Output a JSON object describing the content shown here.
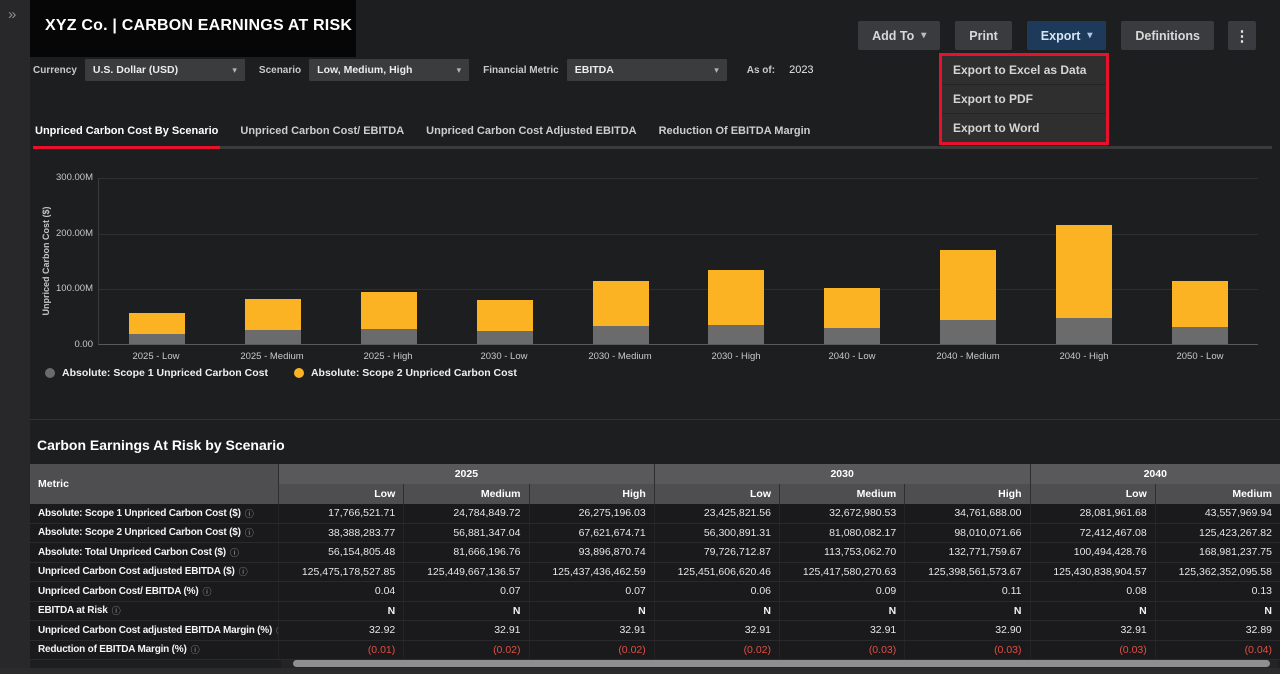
{
  "icons": {
    "expand": "»",
    "caret_down": "▾",
    "kebab": "⋮",
    "info": "ⓘ"
  },
  "colors": {
    "accent_red": "#E8112D",
    "export_button_bg": "#1E3A5A",
    "bar_scope1": "#6B6B6B",
    "bar_scope2": "#FBB324",
    "negative_value": "#E04F44"
  },
  "header": {
    "title": "XYZ Co. | CARBON EARNINGS AT RISK",
    "actions": [
      {
        "label": "Add To",
        "caret": true,
        "accent": false
      },
      {
        "label": "Print",
        "caret": false,
        "accent": false
      },
      {
        "label": "Export",
        "caret": true,
        "accent": true
      },
      {
        "label": "Definitions",
        "caret": false,
        "accent": false
      }
    ]
  },
  "export_menu": {
    "items": [
      "Export to Excel as Data",
      "Export to PDF",
      "Export to Word"
    ]
  },
  "filters": {
    "controls": [
      {
        "label": "Currency",
        "value": "U.S. Dollar (USD)"
      },
      {
        "label": "Scenario",
        "value": "Low, Medium, High"
      },
      {
        "label": "Financial Metric",
        "value": "EBITDA"
      }
    ],
    "as_of_label": "As of:",
    "as_of_value": "2023"
  },
  "tabs": [
    {
      "label": "Unpriced Carbon Cost By Scenario",
      "active": true
    },
    {
      "label": "Unpriced Carbon Cost/ EBITDA",
      "active": false
    },
    {
      "label": "Unpriced Carbon Cost Adjusted EBITDA",
      "active": false
    },
    {
      "label": "Reduction Of EBITDA Margin",
      "active": false
    }
  ],
  "chart_data": {
    "type": "bar",
    "stacked": true,
    "ylabel": "Unpriced Carbon Cost ($)",
    "ylim": [
      0,
      300000000
    ],
    "grid": true,
    "legend_position": "bottom-left",
    "yticks": [
      {
        "label": "300.00M",
        "value": 300000000
      },
      {
        "label": "200.00M",
        "value": 200000000
      },
      {
        "label": "100.00M",
        "value": 100000000
      },
      {
        "label": "0.00",
        "value": 0
      }
    ],
    "categories": [
      "2025 - Low",
      "2025 - Medium",
      "2025 - High",
      "2030 - Low",
      "2030 - Medium",
      "2030 - High",
      "2040 - Low",
      "2040 - Medium",
      "2040 - High",
      "2050 - Low"
    ],
    "series": [
      {
        "name": "Absolute: Scope 1 Unpriced Carbon Cost",
        "color": "#6B6B6B",
        "values": [
          17766521.71,
          24784849.72,
          26275196.03,
          23425821.56,
          32672980.53,
          34761688.0,
          28081961.68,
          43557969.94,
          47000000,
          30000000
        ]
      },
      {
        "name": "Absolute: Scope 2 Unpriced Carbon Cost",
        "color": "#FBB324",
        "values": [
          38388283.77,
          56881347.04,
          67621674.71,
          56300891.31,
          81080082.17,
          98010071.66,
          72412467.08,
          125423267.82,
          167000000,
          83500000
        ]
      }
    ]
  },
  "table": {
    "title": "Carbon Earnings At Risk by Scenario",
    "metric_header": "Metric",
    "col_groups": [
      {
        "label": "2025",
        "cols": [
          "Low",
          "Medium",
          "High"
        ]
      },
      {
        "label": "2030",
        "cols": [
          "Low",
          "Medium",
          "High"
        ]
      },
      {
        "label": "2040",
        "cols": [
          "Low",
          "Medium"
        ]
      }
    ],
    "rows": [
      {
        "metric": "Absolute: Scope 1 Unpriced Carbon Cost ($)",
        "info": true,
        "values": [
          "17,766,521.71",
          "24,784,849.72",
          "26,275,196.03",
          "23,425,821.56",
          "32,672,980.53",
          "34,761,688.00",
          "28,081,961.68",
          "43,557,969.94"
        ]
      },
      {
        "metric": "Absolute: Scope 2 Unpriced Carbon Cost ($)",
        "info": true,
        "values": [
          "38,388,283.77",
          "56,881,347.04",
          "67,621,674.71",
          "56,300,891.31",
          "81,080,082.17",
          "98,010,071.66",
          "72,412,467.08",
          "125,423,267.82"
        ]
      },
      {
        "metric": "Absolute: Total Unpriced Carbon Cost ($)",
        "info": true,
        "values": [
          "56,154,805.48",
          "81,666,196.76",
          "93,896,870.74",
          "79,726,712.87",
          "113,753,062.70",
          "132,771,759.67",
          "100,494,428.76",
          "168,981,237.75"
        ]
      },
      {
        "metric": "Unpriced Carbon Cost adjusted EBITDA ($)",
        "info": true,
        "values": [
          "125,475,178,527.85",
          "125,449,667,136.57",
          "125,437,436,462.59",
          "125,451,606,620.46",
          "125,417,580,270.63",
          "125,398,561,573.67",
          "125,430,838,904.57",
          "125,362,352,095.58"
        ]
      },
      {
        "metric": "Unpriced Carbon Cost/ EBITDA (%)",
        "info": true,
        "values": [
          "0.04",
          "0.07",
          "0.07",
          "0.06",
          "0.09",
          "0.11",
          "0.08",
          "0.13"
        ]
      },
      {
        "metric": "EBITDA at Risk",
        "info": true,
        "values": [
          "N",
          "N",
          "N",
          "N",
          "N",
          "N",
          "N",
          "N"
        ]
      },
      {
        "metric": "Unpriced Carbon Cost adjusted EBITDA Margin (%)",
        "info": true,
        "values": [
          "32.92",
          "32.91",
          "32.91",
          "32.91",
          "32.91",
          "32.90",
          "32.91",
          "32.89"
        ]
      },
      {
        "metric": "Reduction of EBITDA Margin (%)",
        "info": true,
        "values": [
          "(0.01)",
          "(0.02)",
          "(0.02)",
          "(0.02)",
          "(0.03)",
          "(0.03)",
          "(0.03)",
          "(0.04)"
        ]
      }
    ]
  }
}
